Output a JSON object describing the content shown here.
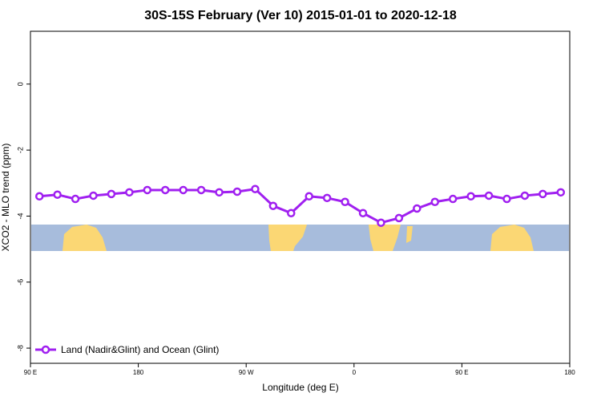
{
  "chart_data": {
    "type": "line",
    "title": "30S-15S February (Ver 10)   2015-01-01 to 2020-12-18",
    "x_label": "Longitude (deg E)",
    "y_label": "XCO2 - MLO trend (ppm)",
    "x": [
      97.5,
      112.5,
      127.5,
      142.5,
      157.5,
      172.5,
      187.5,
      202.5,
      217.5,
      232.5,
      247.5,
      262.5,
      277.5,
      292.5,
      307.5,
      322.5,
      337.5,
      352.5,
      367.5,
      382.5,
      397.5,
      412.5,
      427.5,
      442.5,
      457.5,
      472.5,
      487.5,
      502.5,
      517.5,
      532.5
    ],
    "series": [
      {
        "name": "Land (Nadir&Glint) and Ocean (Glint)",
        "color": "#a020f0",
        "values": [
          -3.4,
          -3.35,
          -3.48,
          -3.38,
          -3.33,
          -3.28,
          -3.21,
          -3.21,
          -3.21,
          -3.21,
          -3.28,
          -3.26,
          -3.18,
          -3.69,
          -3.91,
          -3.4,
          -3.45,
          -3.57,
          -3.91,
          -4.2,
          -4.06,
          -3.77,
          -3.57,
          -3.48,
          -3.4,
          -3.38,
          -3.48,
          -3.38,
          -3.33,
          -3.28
        ]
      }
    ],
    "xlim": [
      90,
      540
    ],
    "xticks": [
      {
        "value": 90,
        "label": "90 E"
      },
      180,
      {
        "value": 270,
        "label": "90 W"
      },
      {
        "value": 360,
        "label": "0"
      },
      {
        "value": 450,
        "label": "90 E"
      },
      {
        "value": 540,
        "label": "180"
      }
    ],
    "ylim": [
      -8.46,
      1.6
    ],
    "yticks": [
      0,
      -2,
      -4,
      -6,
      -8
    ],
    "legend": "bottom-left"
  }
}
